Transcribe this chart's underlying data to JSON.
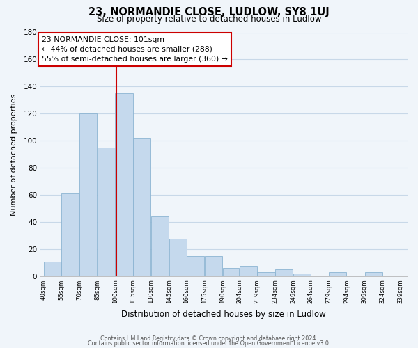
{
  "title": "23, NORMANDIE CLOSE, LUDLOW, SY8 1UJ",
  "subtitle": "Size of property relative to detached houses in Ludlow",
  "xlabel": "Distribution of detached houses by size in Ludlow",
  "ylabel": "Number of detached properties",
  "bar_left_edges": [
    40,
    55,
    70,
    85,
    100,
    115,
    130,
    145,
    160,
    175,
    190,
    204,
    219,
    234,
    249,
    264,
    279,
    294,
    309,
    324
  ],
  "bar_heights": [
    11,
    61,
    120,
    95,
    135,
    102,
    44,
    28,
    15,
    15,
    6,
    8,
    3,
    5,
    2,
    0,
    3,
    0,
    3
  ],
  "bar_widths": [
    15,
    15,
    15,
    15,
    15,
    15,
    15,
    15,
    15,
    15,
    14,
    15,
    15,
    15,
    15,
    15,
    15,
    15,
    15
  ],
  "tick_labels": [
    "40sqm",
    "55sqm",
    "70sqm",
    "85sqm",
    "100sqm",
    "115sqm",
    "130sqm",
    "145sqm",
    "160sqm",
    "175sqm",
    "190sqm",
    "204sqm",
    "219sqm",
    "234sqm",
    "249sqm",
    "264sqm",
    "279sqm",
    "294sqm",
    "309sqm",
    "324sqm",
    "339sqm"
  ],
  "tick_positions": [
    40,
    55,
    70,
    85,
    100,
    115,
    130,
    145,
    160,
    175,
    190,
    204,
    219,
    234,
    249,
    264,
    279,
    294,
    309,
    324,
    339
  ],
  "bar_color": "#c5d9ed",
  "bar_edge_color": "#8cb4d2",
  "reference_line_x": 101,
  "reference_line_color": "#cc0000",
  "annotation_text": "23 NORMANDIE CLOSE: 101sqm\n← 44% of detached houses are smaller (288)\n55% of semi-detached houses are larger (360) →",
  "annotation_box_color": "#ffffff",
  "annotation_box_edge": "#cc0000",
  "ylim": [
    0,
    180
  ],
  "xlim": [
    37,
    345
  ],
  "yticks": [
    0,
    20,
    40,
    60,
    80,
    100,
    120,
    140,
    160,
    180
  ],
  "footer_line1": "Contains HM Land Registry data © Crown copyright and database right 2024.",
  "footer_line2": "Contains public sector information licensed under the Open Government Licence v3.0.",
  "grid_color": "#c8d8e8",
  "bg_color": "#f0f5fa",
  "plot_bg_color": "#f0f5fa"
}
